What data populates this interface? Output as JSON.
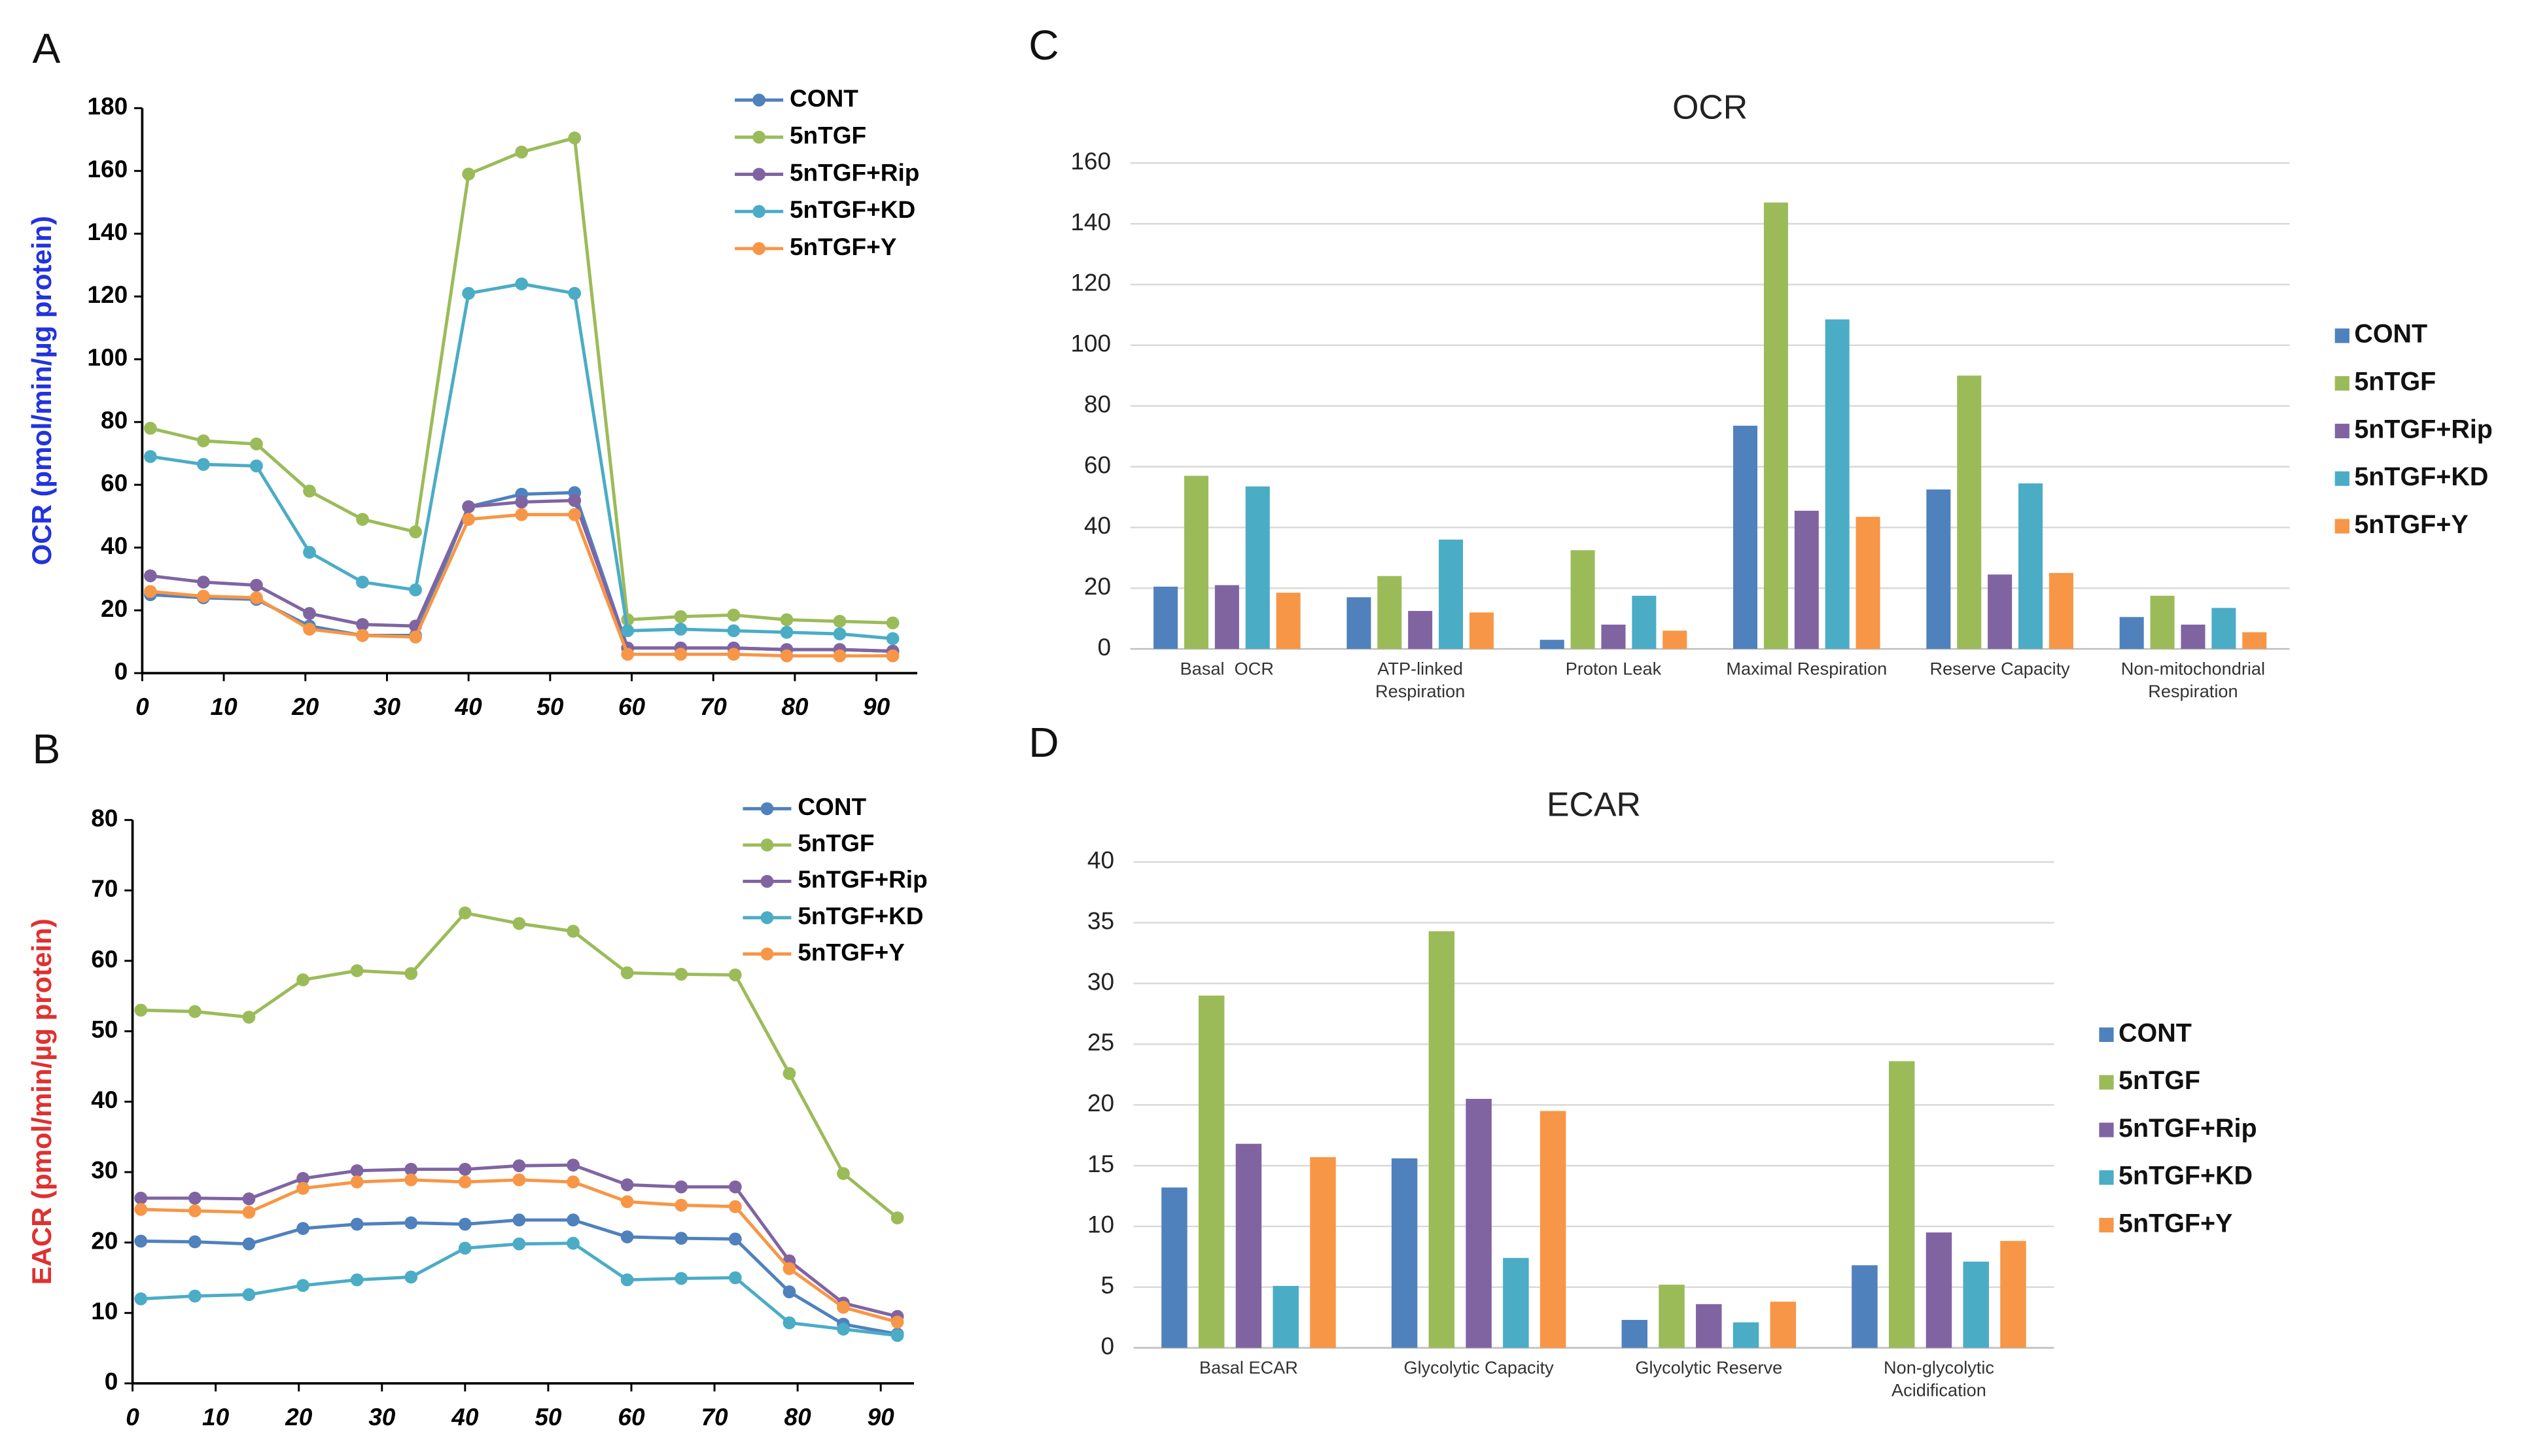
{
  "chart_data": [
    {
      "type": "line",
      "label": "A",
      "ylabel": "OCR (pmol/min/µg protein)",
      "ylabel_color": "#2233dd",
      "x": [
        1,
        7.5,
        14,
        20.5,
        27,
        33.5,
        40,
        46.5,
        53,
        59.5,
        66,
        72.5,
        79,
        85.5,
        92
      ],
      "xlim": [
        0,
        95
      ],
      "xticks": [
        0,
        10,
        20,
        30,
        40,
        50,
        60,
        70,
        80,
        90
      ],
      "ylim": [
        0,
        180
      ],
      "yticks": [
        0,
        20,
        40,
        60,
        80,
        100,
        120,
        140,
        160,
        180
      ],
      "grid": false,
      "legend": "upper right",
      "series": [
        {
          "name": "CONT",
          "color": "#4f81bd",
          "values": [
            25,
            24,
            23.5,
            15,
            12,
            12,
            53,
            57,
            57.5,
            8,
            8,
            8,
            7.5,
            7.5,
            7
          ]
        },
        {
          "name": "5nTGF",
          "color": "#9bbb59",
          "values": [
            78,
            74,
            73,
            58,
            49,
            45,
            159,
            166,
            170.5,
            17,
            18,
            18.5,
            17,
            16.5,
            16
          ]
        },
        {
          "name": "5nTGF+Rip",
          "color": "#8064a2",
          "values": [
            31,
            29,
            28,
            19,
            15.5,
            15,
            53,
            54.5,
            55,
            8,
            8,
            8,
            7.5,
            7.5,
            7
          ]
        },
        {
          "name": "5nTGF+KD",
          "color": "#4bacc6",
          "values": [
            69,
            66.5,
            66,
            38.5,
            29,
            26.5,
            121,
            124,
            121,
            13.5,
            14,
            13.5,
            13,
            12.5,
            11
          ]
        },
        {
          "name": "5nTGF+Y",
          "color": "#f79646",
          "values": [
            26,
            24.5,
            24,
            14,
            12,
            11.5,
            49,
            50.5,
            50.5,
            6,
            6,
            6,
            5.5,
            5.5,
            5.5
          ]
        }
      ]
    },
    {
      "type": "line",
      "label": "B",
      "ylabel": "EACR (pmol/min/µg protein)",
      "ylabel_color": "#e03030",
      "x": [
        1,
        7.5,
        14,
        20.5,
        27,
        33.5,
        40,
        46.5,
        53,
        59.5,
        66,
        72.5,
        79,
        85.5,
        92
      ],
      "xlim": [
        0,
        94
      ],
      "xticks": [
        0,
        10,
        20,
        30,
        40,
        50,
        60,
        70,
        80,
        90
      ],
      "ylim": [
        0,
        80
      ],
      "yticks": [
        0,
        10,
        20,
        30,
        40,
        50,
        60,
        70,
        80
      ],
      "grid": false,
      "legend": "upper right",
      "series": [
        {
          "name": "CONT",
          "color": "#4f81bd",
          "values": [
            20.2,
            20.1,
            19.8,
            22,
            22.6,
            22.8,
            22.6,
            23.2,
            23.2,
            20.8,
            20.6,
            20.5,
            13,
            8.4,
            7
          ]
        },
        {
          "name": "5nTGF",
          "color": "#9bbb59",
          "values": [
            53,
            52.8,
            52,
            57.3,
            58.6,
            58.2,
            66.8,
            65.3,
            64.2,
            58.3,
            58.1,
            58,
            44,
            29.8,
            23.5
          ]
        },
        {
          "name": "5nTGF+Rip",
          "color": "#8064a2",
          "values": [
            26.3,
            26.3,
            26.2,
            29.1,
            30.2,
            30.4,
            30.4,
            30.9,
            31,
            28.2,
            27.9,
            27.9,
            17.4,
            11.4,
            9.5
          ]
        },
        {
          "name": "5nTGF+KD",
          "color": "#4bacc6",
          "values": [
            12,
            12.4,
            12.6,
            13.9,
            14.7,
            15.1,
            19.2,
            19.8,
            19.9,
            14.7,
            14.9,
            15,
            8.6,
            7.7,
            6.8
          ]
        },
        {
          "name": "5nTGF+Y",
          "color": "#f79646",
          "values": [
            24.7,
            24.5,
            24.3,
            27.7,
            28.6,
            28.9,
            28.6,
            28.9,
            28.6,
            25.8,
            25.3,
            25.1,
            16.3,
            10.8,
            8.7
          ]
        }
      ]
    },
    {
      "type": "bar",
      "label": "C",
      "title": "OCR",
      "categories": [
        "Basal  OCR",
        "ATP-linked Respiration",
        "Proton Leak",
        "Maximal Respiration",
        "Reserve Capacity",
        "Non-mitochondrial Respiration"
      ],
      "ylim": [
        0,
        160
      ],
      "yticks": [
        0,
        20,
        40,
        60,
        80,
        100,
        120,
        140,
        160
      ],
      "grid": true,
      "legend": "right",
      "series": [
        {
          "name": "CONT",
          "color": "#4f81bd",
          "values": [
            20.5,
            17,
            3,
            73.5,
            52.5,
            10.5
          ]
        },
        {
          "name": "5nTGF",
          "color": "#9bbb59",
          "values": [
            57,
            24,
            32.5,
            147,
            90,
            17.5
          ]
        },
        {
          "name": "5nTGF+Rip",
          "color": "#8064a2",
          "values": [
            21,
            12.5,
            8,
            45.5,
            24.5,
            8
          ]
        },
        {
          "name": "5nTGF+KD",
          "color": "#4bacc6",
          "values": [
            53.5,
            36,
            17.5,
            108.5,
            54.5,
            13.5
          ]
        },
        {
          "name": "5nTGF+Y",
          "color": "#f79646",
          "values": [
            18.5,
            12,
            6,
            43.5,
            25,
            5.5
          ]
        }
      ]
    },
    {
      "type": "bar",
      "label": "D",
      "title": "ECAR",
      "categories": [
        "Basal ECAR",
        "Glycolytic Capacity",
        "Glycolytic Reserve",
        "Non-glycolytic Acidification"
      ],
      "ylim": [
        0,
        40
      ],
      "yticks": [
        0,
        5,
        10,
        15,
        20,
        25,
        30,
        35,
        40
      ],
      "grid": true,
      "legend": "right",
      "series": [
        {
          "name": "CONT",
          "color": "#4f81bd",
          "values": [
            13.2,
            15.6,
            2.3,
            6.8
          ]
        },
        {
          "name": "5nTGF",
          "color": "#9bbb59",
          "values": [
            29,
            34.3,
            5.2,
            23.6
          ]
        },
        {
          "name": "5nTGF+Rip",
          "color": "#8064a2",
          "values": [
            16.8,
            20.5,
            3.6,
            9.5
          ]
        },
        {
          "name": "5nTGF+KD",
          "color": "#4bacc6",
          "values": [
            5.1,
            7.4,
            2.1,
            7.1
          ]
        },
        {
          "name": "5nTGF+Y",
          "color": "#f79646",
          "values": [
            15.7,
            19.5,
            3.8,
            8.8
          ]
        }
      ]
    }
  ]
}
